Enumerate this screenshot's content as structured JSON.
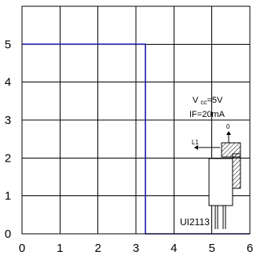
{
  "chart_data": {
    "type": "line",
    "title": "",
    "xlabel": "",
    "ylabel": "",
    "xlim": [
      0,
      6
    ],
    "ylim": [
      0,
      6
    ],
    "x_ticks": [
      "0",
      "1",
      "2",
      "3",
      "4",
      "5",
      "6"
    ],
    "y_ticks": [
      "0",
      "1",
      "2",
      "3",
      "4",
      "5"
    ],
    "grid": true,
    "series": [
      {
        "color": "#1a1aa8",
        "points": [
          [
            0,
            5
          ],
          [
            3.25,
            5
          ],
          [
            3.25,
            0
          ],
          [
            6,
            0
          ]
        ]
      }
    ],
    "annotations": {
      "vcc": "Vcc=5V",
      "if": "IF=20mA",
      "l1": "L1",
      "zero": "0",
      "model": "UI2113"
    }
  }
}
